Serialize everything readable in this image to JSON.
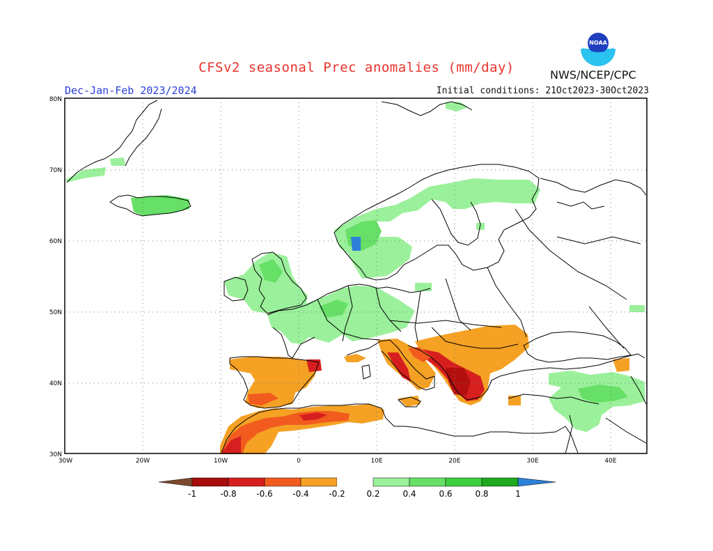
{
  "header": {
    "title": "CFSv2 seasonal Prec anomalies (mm/day)",
    "season": "Dec-Jan-Feb 2023/2024",
    "initial_conditions": "Initial conditions: 21Oct2023-30Oct2023",
    "agency": "NWS/NCEP/CPC",
    "logo_text": "NOAA"
  },
  "map": {
    "lat_labels": [
      "80N",
      "70N",
      "60N",
      "50N",
      "40N",
      "30N"
    ],
    "lon_labels": [
      "30W",
      "20W",
      "10W",
      "0",
      "10E",
      "20E",
      "30E",
      "40E"
    ],
    "colors": {
      "green_light": "#9bf09b",
      "green": "#66e066",
      "blue": "#2c80d8",
      "orange": "#f4a124",
      "red_orange": "#f25b1e",
      "red": "#d61e1e",
      "dark_red": "#b30f0f"
    }
  },
  "colorbar": {
    "labels": [
      "-1",
      "-0.8",
      "-0.6",
      "-0.4",
      "-0.2",
      "0.2",
      "0.4",
      "0.6",
      "0.8",
      "1"
    ],
    "colors": [
      "#7b4a2e",
      "#a80c0c",
      "#d71f1f",
      "#f25b1e",
      "#f4a124",
      "#ffffff",
      "#9bf09b",
      "#66e066",
      "#3ecf3e",
      "#1fa91f",
      "#2c80d8"
    ]
  }
}
